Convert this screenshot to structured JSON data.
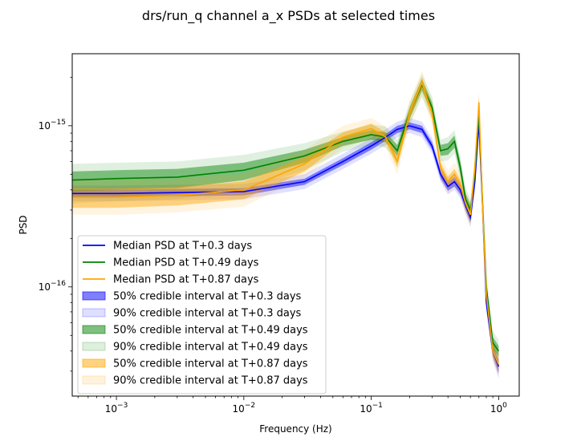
{
  "chart_data": {
    "type": "line",
    "title": "drs/run_q channel a_x PSDs at selected times",
    "xlabel": "Frequency (Hz)",
    "ylabel": "PSD",
    "xscale": "log",
    "yscale": "log",
    "xlim": [
      0.00045,
      1.45
    ],
    "ylim": [
      2.1e-17,
      2.8e-15
    ],
    "xticks": [
      {
        "value": 0.001,
        "base": "10",
        "exp": "−3"
      },
      {
        "value": 0.01,
        "base": "10",
        "exp": "−2"
      },
      {
        "value": 0.1,
        "base": "10",
        "exp": "−1"
      },
      {
        "value": 1,
        "base": "10",
        "exp": "0"
      }
    ],
    "yticks": [
      {
        "value": 1e-16,
        "base": "10",
        "exp": "−16"
      },
      {
        "value": 1e-15,
        "base": "10",
        "exp": "−15"
      }
    ],
    "grid": false,
    "legend_position": "lower-left",
    "x": [
      0.00045,
      0.001,
      0.003,
      0.01,
      0.03,
      0.06,
      0.1,
      0.13,
      0.16,
      0.2,
      0.25,
      0.3,
      0.35,
      0.4,
      0.45,
      0.5,
      0.55,
      0.6,
      0.65,
      0.7,
      0.75,
      0.8,
      0.9,
      1.0
    ],
    "series": [
      {
        "name": "Median PSD at T+0.3 days",
        "color": "#0000ff",
        "median": [
          3.8e-16,
          3.8e-16,
          3.85e-16,
          3.9e-16,
          4.5e-16,
          6e-16,
          7.5e-16,
          8.5e-16,
          9.5e-16,
          1e-15,
          9.5e-16,
          7.5e-16,
          5e-16,
          4.2e-16,
          4.5e-16,
          4e-16,
          3.2e-16,
          2.7e-16,
          4.5e-16,
          1.05e-15,
          3e-16,
          8e-17,
          4e-17,
          3.2e-17
        ],
        "ci50_lo": [
          3.6e-16,
          3.6e-16,
          3.65e-16,
          3.7e-16,
          4.3e-16,
          5.7e-16,
          7.1e-16,
          8.1e-16,
          9e-16,
          9.5e-16,
          9e-16,
          7.1e-16,
          4.7e-16,
          3.95e-16,
          4.2e-16,
          3.75e-16,
          3e-16,
          2.5e-16,
          4.2e-16,
          9.8e-16,
          2.8e-16,
          7.4e-17,
          3.7e-17,
          2.9e-17
        ],
        "ci50_hi": [
          4e-16,
          4e-16,
          4.05e-16,
          4.1e-16,
          4.7e-16,
          6.3e-16,
          7.9e-16,
          8.9e-16,
          1e-15,
          1.05e-15,
          1e-15,
          7.9e-16,
          5.3e-16,
          4.45e-16,
          4.8e-16,
          4.25e-16,
          3.4e-16,
          2.9e-16,
          4.8e-16,
          1.12e-15,
          3.2e-16,
          8.6e-17,
          4.3e-17,
          3.5e-17
        ],
        "ci90_lo": [
          3.4e-16,
          3.4e-16,
          3.45e-16,
          3.5e-16,
          4.05e-16,
          5.4e-16,
          6.7e-16,
          7.6e-16,
          8.5e-16,
          9e-16,
          8.5e-16,
          6.7e-16,
          4.5e-16,
          3.75e-16,
          4e-16,
          3.55e-16,
          2.85e-16,
          2.35e-16,
          4e-16,
          9.3e-16,
          2.65e-16,
          7e-17,
          3.5e-17,
          2.7e-17
        ],
        "ci90_hi": [
          4.25e-16,
          4.25e-16,
          4.3e-16,
          4.35e-16,
          5e-16,
          6.7e-16,
          8.4e-16,
          9.5e-16,
          1.06e-15,
          1.12e-15,
          1.06e-15,
          8.4e-16,
          5.6e-16,
          4.7e-16,
          5.05e-16,
          4.5e-16,
          3.6e-16,
          3.05e-16,
          5.1e-16,
          1.18e-15,
          3.4e-16,
          9.2e-17,
          4.6e-17,
          3.7e-17
        ]
      },
      {
        "name": "Median PSD at T+0.49 days",
        "color": "#008000",
        "median": [
          4.6e-16,
          4.7e-16,
          4.8e-16,
          5.3e-16,
          6.5e-16,
          8e-16,
          8.8e-16,
          8.5e-16,
          7e-16,
          1.2e-15,
          1.8e-15,
          1.3e-15,
          7e-16,
          7.2e-16,
          8e-16,
          5.5e-16,
          3.5e-16,
          3e-16,
          5e-16,
          1.2e-15,
          3.2e-16,
          1e-16,
          4.5e-17,
          4e-17
        ],
        "ci50_lo": [
          3.9e-16,
          4e-16,
          4.1e-16,
          4.6e-16,
          5.9e-16,
          7.5e-16,
          8.2e-16,
          7.9e-16,
          6.5e-16,
          1.1e-15,
          1.65e-15,
          1.2e-15,
          6.5e-16,
          6.6e-16,
          7.3e-16,
          5e-16,
          3.2e-16,
          2.75e-16,
          4.6e-16,
          1.1e-15,
          2.95e-16,
          9.2e-17,
          4.1e-17,
          3.7e-17
        ],
        "ci50_hi": [
          5.2e-16,
          5.3e-16,
          5.4e-16,
          5.9e-16,
          7.1e-16,
          8.5e-16,
          9.4e-16,
          9.1e-16,
          7.6e-16,
          1.3e-15,
          1.95e-15,
          1.4e-15,
          7.6e-16,
          7.8e-16,
          8.7e-16,
          6e-16,
          3.8e-16,
          3.25e-16,
          5.4e-16,
          1.3e-15,
          3.5e-16,
          1.08e-16,
          4.9e-17,
          4.3e-17
        ],
        "ci90_lo": [
          3.3e-16,
          3.4e-16,
          3.5e-16,
          4e-16,
          5.3e-16,
          6.9e-16,
          7.6e-16,
          7.3e-16,
          6e-16,
          1.02e-15,
          1.5e-15,
          1.1e-15,
          6e-16,
          6.1e-16,
          6.7e-16,
          4.6e-16,
          2.95e-16,
          2.5e-16,
          4.2e-16,
          1e-15,
          2.7e-16,
          8.4e-17,
          3.8e-17,
          3.4e-17
        ],
        "ci90_hi": [
          5.8e-16,
          5.9e-16,
          6e-16,
          6.6e-16,
          7.8e-16,
          9.2e-16,
          1.02e-15,
          9.9e-16,
          8.2e-16,
          1.4e-15,
          2.1e-15,
          1.52e-15,
          8.2e-16,
          8.5e-16,
          9.4e-16,
          6.5e-16,
          4.1e-16,
          3.5e-16,
          5.9e-16,
          1.42e-15,
          3.8e-16,
          1.18e-16,
          5.3e-17,
          4.7e-17
        ]
      },
      {
        "name": "Median PSD at T+0.87 days",
        "color": "#ffa500",
        "median": [
          3.6e-16,
          3.6e-16,
          3.7e-16,
          4e-16,
          5.8e-16,
          8.5e-16,
          9.6e-16,
          8.5e-16,
          6e-16,
          1.2e-15,
          1.85e-15,
          1.2e-15,
          5.5e-16,
          4.5e-16,
          5e-16,
          4.3e-16,
          3.3e-16,
          2.8e-16,
          5.5e-16,
          1.4e-15,
          3e-16,
          9e-17,
          4e-17,
          3.3e-17
        ],
        "ci50_lo": [
          3.1e-16,
          3.1e-16,
          3.2e-16,
          3.5e-16,
          5.2e-16,
          7.9e-16,
          8.9e-16,
          7.9e-16,
          5.5e-16,
          1.1e-15,
          1.7e-15,
          1.1e-15,
          5.1e-16,
          4.15e-16,
          4.6e-16,
          3.95e-16,
          3.05e-16,
          2.55e-16,
          5e-16,
          1.28e-15,
          2.75e-16,
          8.3e-17,
          3.7e-17,
          3e-17
        ],
        "ci50_hi": [
          4.1e-16,
          4.1e-16,
          4.2e-16,
          4.5e-16,
          6.4e-16,
          9.1e-16,
          1.03e-15,
          9.1e-16,
          6.5e-16,
          1.3e-15,
          2e-15,
          1.3e-15,
          5.9e-16,
          4.85e-16,
          5.4e-16,
          4.65e-16,
          3.55e-16,
          3.05e-16,
          6e-16,
          1.52e-15,
          3.25e-16,
          9.7e-17,
          4.3e-17,
          3.6e-17
        ],
        "ci90_lo": [
          2.8e-16,
          2.8e-16,
          2.9e-16,
          3.15e-16,
          4.8e-16,
          7.3e-16,
          8.3e-16,
          7.3e-16,
          5e-16,
          1e-15,
          1.55e-15,
          1e-15,
          4.6e-16,
          3.8e-16,
          4.2e-16,
          3.6e-16,
          2.8e-16,
          2.35e-16,
          4.6e-16,
          1.18e-15,
          2.5e-16,
          7.6e-17,
          3.4e-17,
          2.8e-17
        ],
        "ci90_hi": [
          4.6e-16,
          4.6e-16,
          4.7e-16,
          5e-16,
          7.1e-16,
          1e-15,
          1.12e-15,
          9.9e-16,
          7.1e-16,
          1.42e-15,
          2.2e-15,
          1.42e-15,
          6.5e-16,
          5.3e-16,
          5.9e-16,
          5.1e-16,
          3.9e-16,
          3.35e-16,
          6.6e-16,
          1.66e-15,
          3.55e-16,
          1.06e-16,
          4.7e-17,
          3.9e-17
        ]
      }
    ],
    "legend": [
      {
        "label": "Median PSD at T+0.3 days",
        "kind": "line",
        "series": 0
      },
      {
        "label": "Median PSD at T+0.49 days",
        "kind": "line",
        "series": 1
      },
      {
        "label": "Median PSD at T+0.87 days",
        "kind": "line",
        "series": 2
      },
      {
        "label": "50% credible interval at T+0.3 days",
        "kind": "ci50",
        "series": 0
      },
      {
        "label": "90% credible interval at T+0.3 days",
        "kind": "ci90",
        "series": 0
      },
      {
        "label": "50% credible interval at T+0.49 days",
        "kind": "ci50",
        "series": 1
      },
      {
        "label": "90% credible interval at T+0.49 days",
        "kind": "ci90",
        "series": 1
      },
      {
        "label": "50% credible interval at T+0.87 days",
        "kind": "ci50",
        "series": 2
      },
      {
        "label": "90% credible interval at T+0.87 days",
        "kind": "ci90",
        "series": 2
      }
    ]
  }
}
